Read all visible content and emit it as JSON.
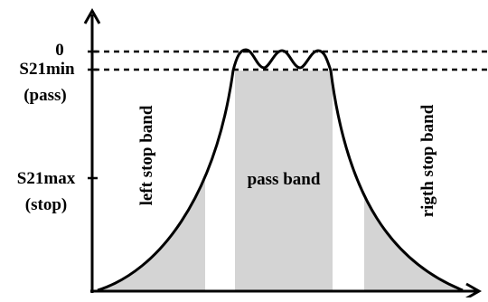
{
  "labels": {
    "level_zero": "0",
    "s21min": "S21min",
    "s21min_note": "(pass)",
    "s21max": "S21max",
    "s21max_note": "(stop)",
    "left_band": "left stop band",
    "pass_band": "pass band",
    "right_band": "rigth stop band"
  },
  "colors": {
    "band_fill": "#d4d4d4",
    "curve": "#000000",
    "axis": "#000000",
    "background": "#ffffff"
  }
}
